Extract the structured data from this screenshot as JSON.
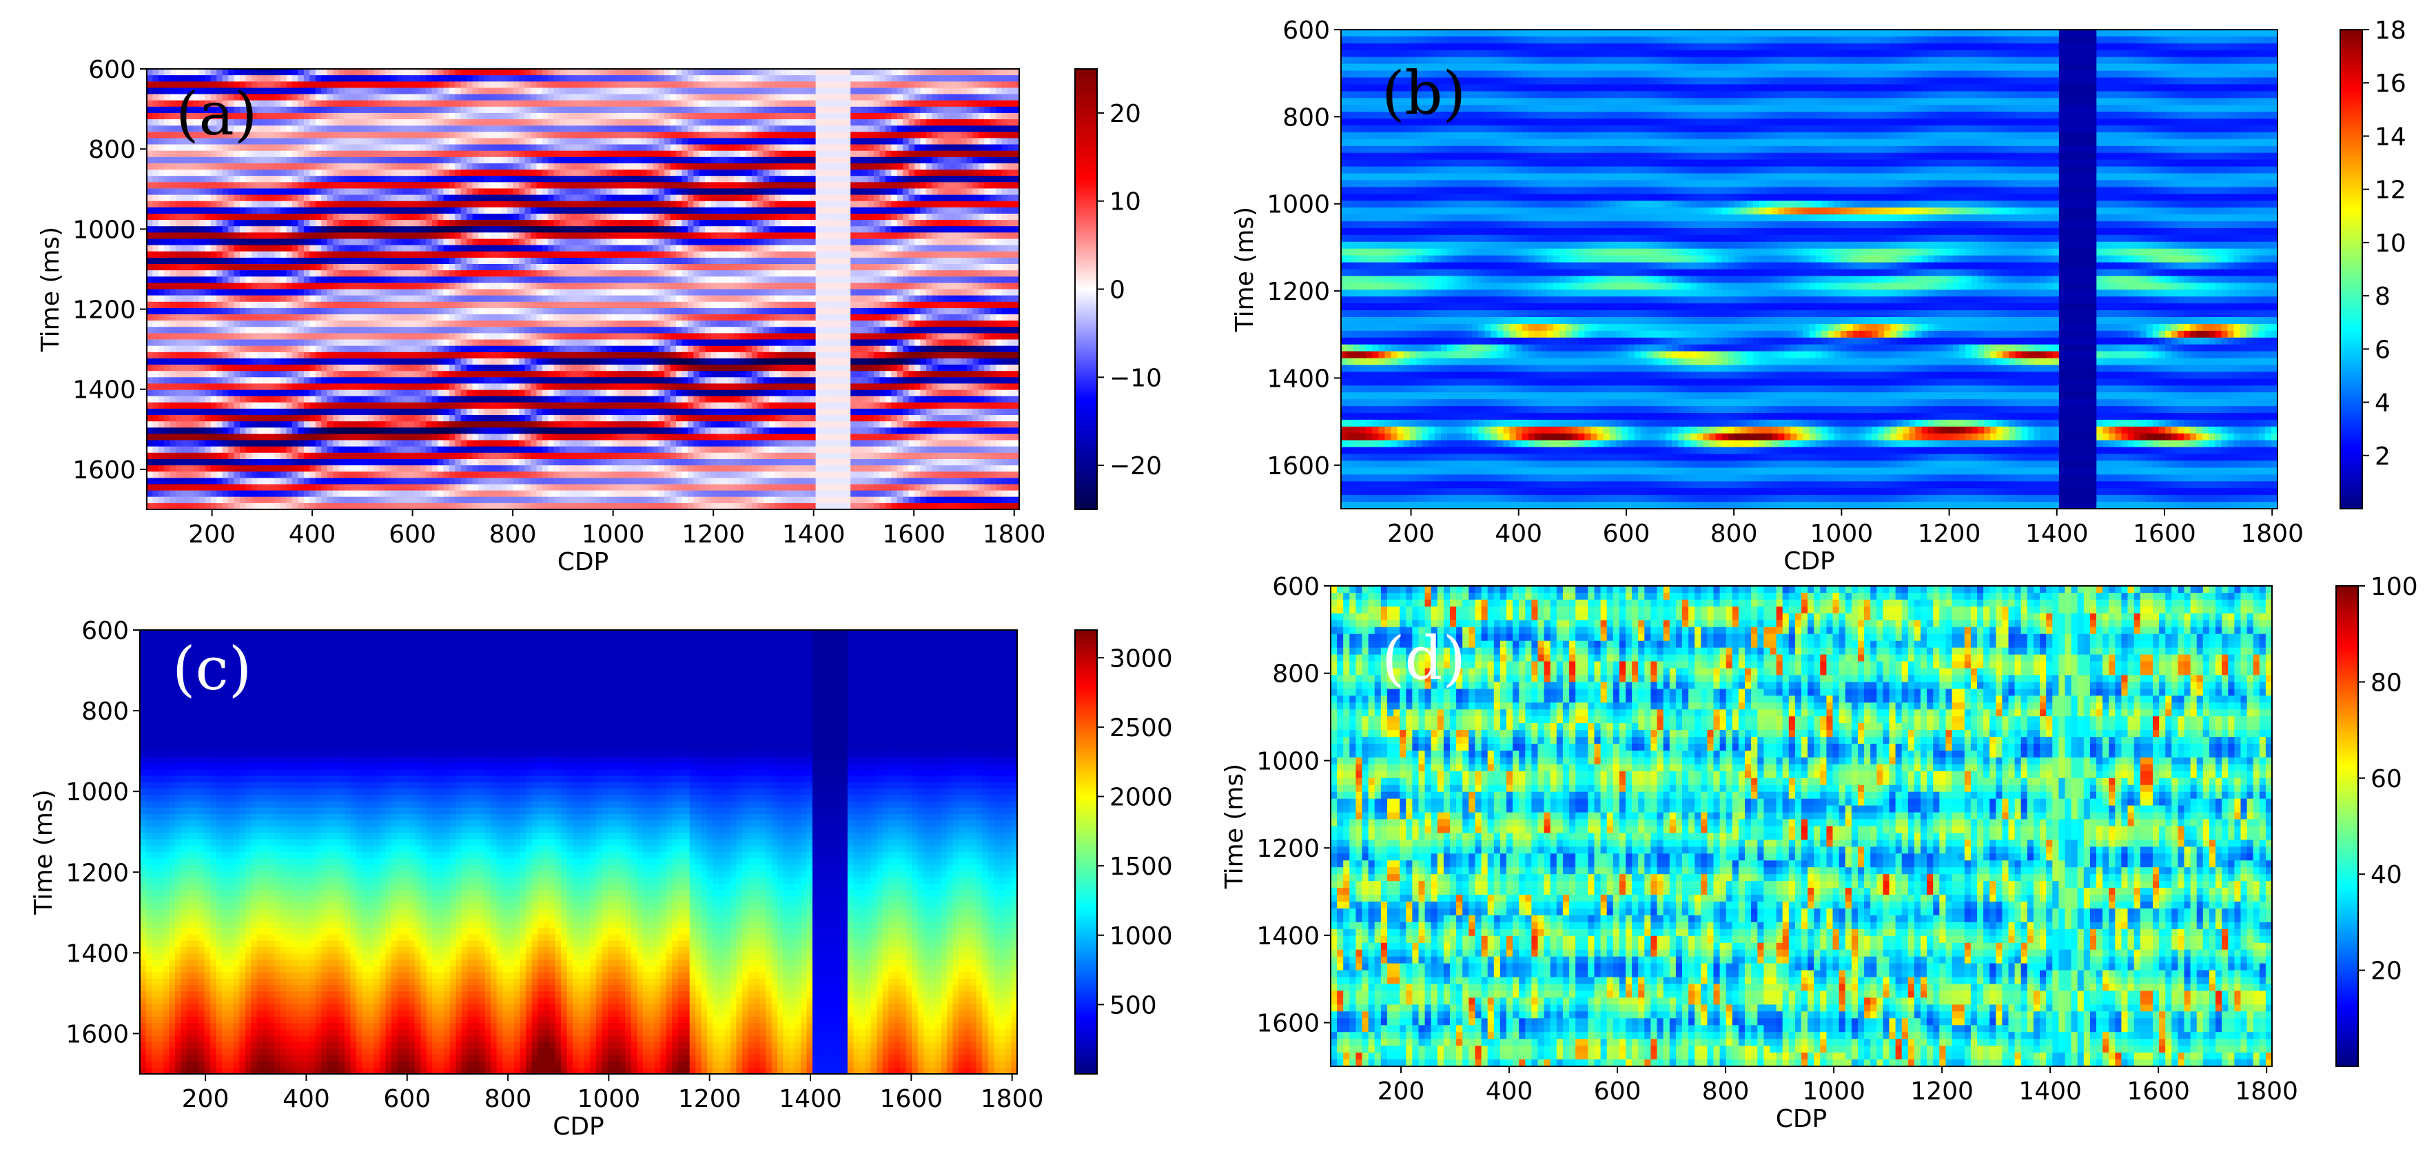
{
  "figure": {
    "colors": {
      "seismic_map": [
        "#00004c",
        "#0000ff",
        "#ffffff",
        "#ff0000",
        "#7f0000"
      ],
      "jet_map": [
        "#00007f",
        "#0000ff",
        "#007fff",
        "#00ffff",
        "#7fff7f",
        "#ffff00",
        "#ff7f00",
        "#ff0000",
        "#7f0000"
      ],
      "label_dark": "#000000",
      "label_light": "#ffffff"
    }
  },
  "chart_data": [
    {
      "type": "heatmap",
      "panel_label": "(a)",
      "xlabel": "CDP",
      "ylabel": "Time (ms)",
      "xlim": [
        70,
        1810
      ],
      "ylim": [
        600,
        1700
      ],
      "y_inverted": true,
      "xticks": [
        200,
        400,
        600,
        800,
        1000,
        1200,
        1400,
        1600,
        1800
      ],
      "yticks": [
        600,
        800,
        1000,
        1200,
        1400,
        1600
      ],
      "colorbar": {
        "colormap": "seismic",
        "range": [
          -25,
          25
        ],
        "ticks": [
          20,
          10,
          0,
          -10,
          -20
        ],
        "tick_labels": [
          "20",
          "10",
          "0",
          "−10",
          "−20"
        ]
      },
      "label_style": "dark"
    },
    {
      "type": "heatmap",
      "panel_label": "(b)",
      "xlabel": "CDP",
      "ylabel": "Time (ms)",
      "xlim": [
        70,
        1810
      ],
      "ylim": [
        600,
        1700
      ],
      "y_inverted": true,
      "xticks": [
        200,
        400,
        600,
        800,
        1000,
        1200,
        1400,
        1600,
        1800
      ],
      "yticks": [
        600,
        800,
        1000,
        1200,
        1400,
        1600
      ],
      "colorbar": {
        "colormap": "jet",
        "range": [
          0,
          18
        ],
        "ticks": [
          18,
          16,
          14,
          12,
          10,
          8,
          6,
          4,
          2
        ],
        "tick_labels": [
          "18",
          "16",
          "14",
          "12",
          "10",
          "8",
          "6",
          "4",
          "2"
        ]
      },
      "label_style": "dark"
    },
    {
      "type": "heatmap",
      "panel_label": "(c)",
      "xlabel": "CDP",
      "ylabel": "Time (ms)",
      "xlim": [
        70,
        1810
      ],
      "ylim": [
        600,
        1700
      ],
      "y_inverted": true,
      "xticks": [
        200,
        400,
        600,
        800,
        1000,
        1200,
        1400,
        1600,
        1800
      ],
      "yticks": [
        600,
        800,
        1000,
        1200,
        1400,
        1600
      ],
      "colorbar": {
        "colormap": "jet",
        "range": [
          0,
          3200
        ],
        "ticks": [
          3000,
          2500,
          2000,
          1500,
          1000,
          500
        ],
        "tick_labels": [
          "3000",
          "2500",
          "2000",
          "1500",
          "1000",
          "500"
        ]
      },
      "label_style": "light"
    },
    {
      "type": "heatmap",
      "panel_label": "(d)",
      "xlabel": "CDP",
      "ylabel": "Time (ms)",
      "xlim": [
        70,
        1810
      ],
      "ylim": [
        600,
        1700
      ],
      "y_inverted": true,
      "xticks": [
        200,
        400,
        600,
        800,
        1000,
        1200,
        1400,
        1600,
        1800
      ],
      "yticks": [
        600,
        800,
        1000,
        1200,
        1400,
        1600
      ],
      "colorbar": {
        "colormap": "jet",
        "range": [
          0,
          100
        ],
        "ticks": [
          100,
          80,
          60,
          40,
          20
        ],
        "tick_labels": [
          "100",
          "80",
          "60",
          "40",
          "20"
        ]
      },
      "label_style": "light"
    }
  ]
}
